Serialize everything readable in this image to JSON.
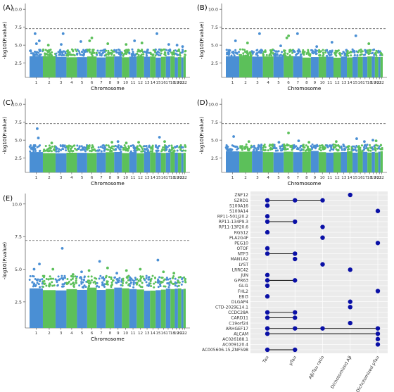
{
  "colors": {
    "blue": "#4a8fd4",
    "green": "#5cc05a",
    "panel_bg": "#ebebeb",
    "grid": "#ffffff",
    "dot": "#0a10a6",
    "threshold": "#666666",
    "text": "#333333"
  },
  "chart_data": [
    {
      "panel": "(A)",
      "type": "scatter",
      "subtype": "manhattan",
      "xlabel": "Chromosome",
      "ylabel": "-log10(P.value)",
      "x_ticks": [
        "1",
        "2",
        "3",
        "4",
        "5",
        "6",
        "7",
        "8",
        "9",
        "10",
        "11",
        "12",
        "13",
        "14",
        "15",
        "16",
        "17",
        "18",
        "19",
        "20",
        "21",
        "22"
      ],
      "y_ticks": [
        2.5,
        5.0,
        7.5,
        10.0
      ],
      "ylim": [
        0.5,
        10.8
      ],
      "threshold": 7.3,
      "baseline_max": 3.5,
      "seed": 11,
      "peaks": [
        {
          "chr": "1",
          "value": 6.6
        },
        {
          "chr": "1",
          "value": 5.6
        },
        {
          "chr": "1",
          "value": 5.2
        },
        {
          "chr": "2",
          "value": 5.0
        },
        {
          "chr": "3",
          "value": 6.6
        },
        {
          "chr": "3",
          "value": 5.1
        },
        {
          "chr": "5",
          "value": 5.5
        },
        {
          "chr": "6",
          "value": 5.6
        },
        {
          "chr": "6",
          "value": 6.0
        },
        {
          "chr": "8",
          "value": 5.2
        },
        {
          "chr": "10",
          "value": 5.1
        },
        {
          "chr": "11",
          "value": 5.6
        },
        {
          "chr": "12",
          "value": 5.3
        },
        {
          "chr": "15",
          "value": 6.6
        },
        {
          "chr": "17",
          "value": 5.1
        },
        {
          "chr": "19",
          "value": 5.0
        },
        {
          "chr": "21",
          "value": 4.8
        }
      ]
    },
    {
      "panel": "(B)",
      "type": "scatter",
      "subtype": "manhattan",
      "xlabel": "Chromosome",
      "ylabel": "-log10(P.value)",
      "x_ticks": [
        "1",
        "2",
        "3",
        "4",
        "5",
        "6",
        "7",
        "8",
        "9",
        "10",
        "11",
        "12",
        "13",
        "14",
        "15",
        "16",
        "17",
        "18",
        "19",
        "20",
        "21",
        "22"
      ],
      "y_ticks": [
        2.5,
        5.0,
        7.5,
        10.0
      ],
      "ylim": [
        0.5,
        10.8
      ],
      "threshold": 7.3,
      "baseline_max": 3.5,
      "seed": 23,
      "peaks": [
        {
          "chr": "1",
          "value": 5.6
        },
        {
          "chr": "2",
          "value": 5.3
        },
        {
          "chr": "3",
          "value": 6.6
        },
        {
          "chr": "5",
          "value": 4.9
        },
        {
          "chr": "6",
          "value": 6.0
        },
        {
          "chr": "6",
          "value": 6.3
        },
        {
          "chr": "7",
          "value": 6.6
        },
        {
          "chr": "9",
          "value": 4.8
        },
        {
          "chr": "11",
          "value": 5.4
        },
        {
          "chr": "15",
          "value": 6.3
        },
        {
          "chr": "18",
          "value": 5.2
        }
      ]
    },
    {
      "panel": "(C)",
      "type": "scatter",
      "subtype": "manhattan",
      "xlabel": "Chromosome",
      "ylabel": "-log10(P.value)",
      "x_ticks": [
        "1",
        "2",
        "3",
        "4",
        "5",
        "6",
        "7",
        "8",
        "9",
        "10",
        "11",
        "12",
        "13",
        "14",
        "15",
        "16",
        "17",
        "18",
        "19",
        "20",
        "21",
        "22"
      ],
      "y_ticks": [
        2.5,
        5.0,
        7.5,
        10.0
      ],
      "ylim": [
        0.5,
        10.8
      ],
      "threshold": 7.3,
      "baseline_max": 3.4,
      "seed": 37,
      "peaks": [
        {
          "chr": "1",
          "value": 6.6
        },
        {
          "chr": "1",
          "value": 5.3
        },
        {
          "chr": "2",
          "value": 4.6
        },
        {
          "chr": "8",
          "value": 4.7
        },
        {
          "chr": "9",
          "value": 4.8
        },
        {
          "chr": "10",
          "value": 4.6
        },
        {
          "chr": "12",
          "value": 4.7
        },
        {
          "chr": "15",
          "value": 5.4
        },
        {
          "chr": "16",
          "value": 4.8
        }
      ]
    },
    {
      "panel": "(D)",
      "type": "scatter",
      "subtype": "manhattan",
      "xlabel": "Chromosome",
      "ylabel": "-log10(P.value)",
      "x_ticks": [
        "1",
        "2",
        "3",
        "4",
        "5",
        "6",
        "7",
        "8",
        "9",
        "10",
        "11",
        "12",
        "13",
        "14",
        "15",
        "16",
        "17",
        "18",
        "19",
        "20",
        "21",
        "22"
      ],
      "y_ticks": [
        2.5,
        5.0,
        7.5,
        10.0
      ],
      "ylim": [
        0.5,
        10.8
      ],
      "threshold": 7.3,
      "baseline_max": 3.5,
      "seed": 53,
      "peaks": [
        {
          "chr": "1",
          "value": 5.5
        },
        {
          "chr": "2",
          "value": 4.8
        },
        {
          "chr": "5",
          "value": 4.7
        },
        {
          "chr": "6",
          "value": 6.0
        },
        {
          "chr": "7",
          "value": 4.9
        },
        {
          "chr": "8",
          "value": 4.7
        },
        {
          "chr": "12",
          "value": 4.8
        },
        {
          "chr": "15",
          "value": 5.2
        },
        {
          "chr": "17",
          "value": 4.8
        },
        {
          "chr": "19",
          "value": 5.0
        },
        {
          "chr": "20",
          "value": 4.9
        }
      ]
    },
    {
      "panel": "(E)",
      "type": "scatter",
      "subtype": "manhattan",
      "xlabel": "Chromosome",
      "ylabel": "-log10(P.value)",
      "x_ticks": [
        "1",
        "2",
        "3",
        "4",
        "5",
        "6",
        "7",
        "8",
        "9",
        "10",
        "11",
        "12",
        "13",
        "14",
        "15",
        "16",
        "17",
        "18",
        "19",
        "20",
        "21",
        "22"
      ],
      "y_ticks": [
        2.5,
        5.0,
        7.5,
        10.0
      ],
      "ylim": [
        0.5,
        10.8
      ],
      "threshold": 7.2,
      "baseline_max": 3.6,
      "seed": 71,
      "peaks": [
        {
          "chr": "1",
          "value": 5.4
        },
        {
          "chr": "1",
          "value": 5.0
        },
        {
          "chr": "2",
          "value": 5.0
        },
        {
          "chr": "3",
          "value": 6.6
        },
        {
          "chr": "4",
          "value": 4.6
        },
        {
          "chr": "5",
          "value": 4.8
        },
        {
          "chr": "6",
          "value": 4.9
        },
        {
          "chr": "7",
          "value": 5.6
        },
        {
          "chr": "8",
          "value": 5.1
        },
        {
          "chr": "9",
          "value": 4.7
        },
        {
          "chr": "10",
          "value": 4.9
        },
        {
          "chr": "12",
          "value": 5.0
        },
        {
          "chr": "15",
          "value": 5.7
        },
        {
          "chr": "16",
          "value": 4.8
        },
        {
          "chr": "18",
          "value": 4.7
        }
      ]
    },
    {
      "panel": "(F)",
      "type": "scatter",
      "subtype": "dot-matrix",
      "x_categories": [
        "Tau",
        "pTau",
        "Aβ/Tau ratio",
        "Dichotomized Aβ",
        "Dichotomized pTau"
      ],
      "genes": [
        {
          "name": "ZNF12",
          "cols": [
            3
          ]
        },
        {
          "name": "SZRD1",
          "cols": [
            0,
            1,
            2
          ],
          "connect": [
            0,
            2
          ]
        },
        {
          "name": "S100A16",
          "cols": [
            0
          ]
        },
        {
          "name": "S100A14",
          "cols": [
            4
          ]
        },
        {
          "name": "RP11-501J20.2",
          "cols": [
            0
          ]
        },
        {
          "name": "RP11-134P9.3",
          "cols": [
            0,
            1
          ],
          "connect": [
            0,
            1
          ]
        },
        {
          "name": "RP11-13P20.6",
          "cols": [
            2
          ]
        },
        {
          "name": "RGS12",
          "cols": [
            0
          ]
        },
        {
          "name": "PLA2G4F",
          "cols": [
            2
          ]
        },
        {
          "name": "PEG10",
          "cols": [
            4
          ]
        },
        {
          "name": "OTOF",
          "cols": [
            0
          ]
        },
        {
          "name": "NTF3",
          "cols": [
            0,
            1
          ],
          "connect": [
            0,
            1
          ]
        },
        {
          "name": "MAN1A2",
          "cols": [
            1
          ]
        },
        {
          "name": "LYST",
          "cols": [
            2
          ]
        },
        {
          "name": "LRRC42",
          "cols": [
            3
          ]
        },
        {
          "name": "JUN",
          "cols": [
            0
          ]
        },
        {
          "name": "GPR63",
          "cols": [
            0,
            1
          ],
          "connect": [
            0,
            1
          ]
        },
        {
          "name": "GLI1",
          "cols": [
            0
          ]
        },
        {
          "name": "FHL2",
          "cols": [
            4
          ]
        },
        {
          "name": "EBI3",
          "cols": [
            0
          ]
        },
        {
          "name": "DLGAP4",
          "cols": [
            3
          ]
        },
        {
          "name": "CTD-2029E14.1",
          "cols": [
            3
          ]
        },
        {
          "name": "CCDC28A",
          "cols": [
            0,
            1
          ],
          "connect": [
            0,
            1
          ]
        },
        {
          "name": "CARD11",
          "cols": [
            0,
            1
          ],
          "connect": [
            0,
            1
          ]
        },
        {
          "name": "C19orf24",
          "cols": [
            3
          ]
        },
        {
          "name": "ARHGEF17",
          "cols": [
            0,
            1,
            2,
            4
          ],
          "connect": [
            0,
            4
          ]
        },
        {
          "name": "ALCAM",
          "cols": [
            0,
            4
          ],
          "connect": [
            0,
            4
          ]
        },
        {
          "name": "AC026188.1",
          "cols": [
            4
          ]
        },
        {
          "name": "AC009120.4",
          "cols": [
            4
          ]
        },
        {
          "name": "AC005606.15,ZNF598",
          "cols": [
            0,
            1
          ],
          "connect": [
            0,
            1
          ]
        }
      ]
    }
  ]
}
